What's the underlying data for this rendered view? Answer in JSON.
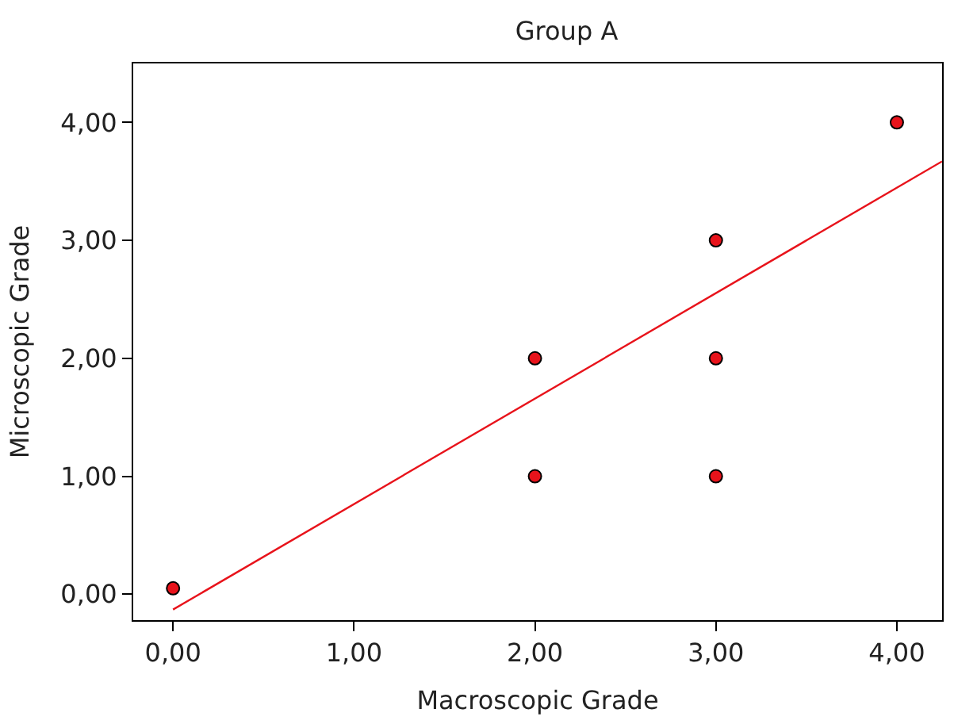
{
  "chart_data": {
    "type": "scatter",
    "title": "Group A",
    "xlabel": "Macroscopic Grade",
    "ylabel": "Microscopic Grade",
    "x": [
      0,
      2,
      2,
      3,
      3,
      3,
      4
    ],
    "series": [
      {
        "color": "#e8131b",
        "values": [
          0.05,
          2,
          1,
          3,
          2,
          1,
          4
        ],
        "marker": "circle"
      },
      {
        "type": "line",
        "color": "#e8131b",
        "x": [
          0,
          4.25
        ],
        "values": [
          -0.13,
          3.67
        ],
        "marker": "none"
      }
    ],
    "xlim": [
      -0.22,
      4.25
    ],
    "ylim": [
      -0.22,
      4.5
    ],
    "xticks": [
      {
        "value": 0,
        "label": "0,00"
      },
      {
        "value": 1,
        "label": "1,00"
      },
      {
        "value": 2,
        "label": "2,00"
      },
      {
        "value": 3,
        "label": "3,00"
      },
      {
        "value": 4,
        "label": "4,00"
      }
    ],
    "yticks": [
      {
        "value": 0,
        "label": "0,00"
      },
      {
        "value": 1,
        "label": "1,00"
      },
      {
        "value": 2,
        "label": "2,00"
      },
      {
        "value": 3,
        "label": "3,00"
      },
      {
        "value": 4,
        "label": "4,00"
      }
    ],
    "grid": false
  }
}
